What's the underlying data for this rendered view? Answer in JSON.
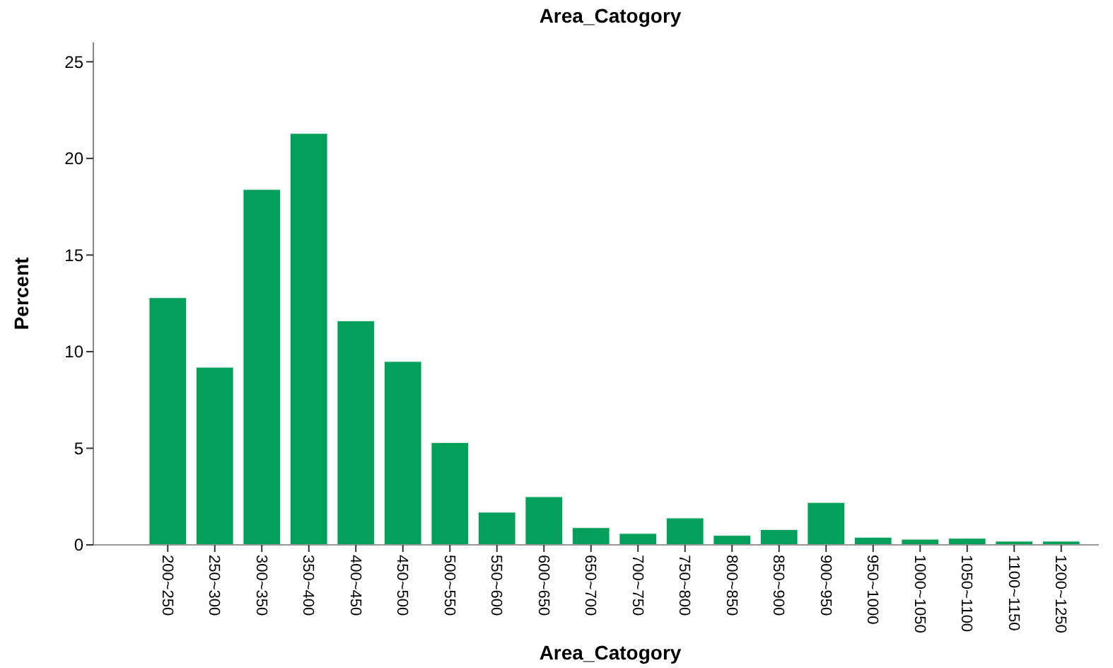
{
  "chart_data": {
    "type": "bar",
    "title": "Area_Catogory",
    "xlabel": "Area_Catogory",
    "ylabel": "Percent",
    "categories": [
      "200~250",
      "250~300",
      "300~350",
      "350~400",
      "400~450",
      "450~500",
      "500~550",
      "550~600",
      "600~650",
      "650~700",
      "700~750",
      "750~800",
      "800~850",
      "850~900",
      "900~950",
      "950~1000",
      "1000~1050",
      "1050~1100",
      "1100~1150",
      "1200~1250"
    ],
    "values": [
      12.8,
      9.2,
      18.4,
      21.3,
      11.6,
      9.5,
      5.3,
      1.7,
      2.5,
      0.9,
      0.6,
      1.4,
      0.5,
      0.8,
      2.2,
      0.4,
      0.3,
      0.35,
      0.2,
      0.2
    ],
    "color": "#049f5b",
    "ylim": [
      0,
      26
    ],
    "yticks": [
      0,
      5,
      10,
      15,
      20,
      25
    ],
    "grid": false
  }
}
